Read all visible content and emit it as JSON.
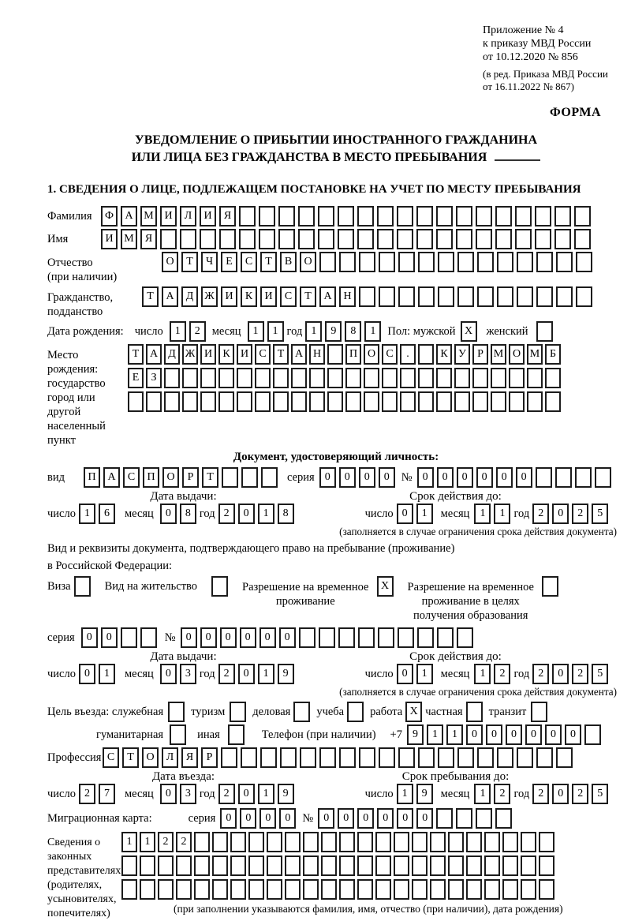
{
  "colors": {
    "ink": "#000000",
    "cell_border": "#1c1c1c"
  },
  "header": {
    "annex": [
      "Приложение № 4",
      "к приказу МВД России",
      "от 10.12.2020 № 856"
    ],
    "annex_note": [
      "(в ред. Приказа МВД России",
      "от 16.11.2022 № 867)"
    ],
    "forma": "ФОРМА"
  },
  "title": {
    "line1": "УВЕДОМЛЕНИЕ О ПРИБЫТИИ ИНОСТРАННОГО ГРАЖДАНИНА",
    "line2": "ИЛИ ЛИЦА БЕЗ ГРАЖДАНСТВА В МЕСТО ПРЕБЫВАНИЯ"
  },
  "section1_heading": "1. СВЕДЕНИЯ О ЛИЦЕ, ПОДЛЕЖАЩЕМ ПОСТАНОВКЕ НА УЧЕТ ПО МЕСТУ ПРЕБЫВАНИЯ",
  "labels": {
    "surname": "Фамилия",
    "name": "Имя",
    "patronymic1": "Отчество",
    "patronymic2": "(при наличии)",
    "citizenship1": "Гражданство,",
    "citizenship2": "подданство",
    "birthdate": "Дата рождения:",
    "day": "число",
    "month": "месяц",
    "year": "год",
    "sex_male": "Пол: мужской",
    "sex_female": "женский",
    "birthplace1": "Место рождения:",
    "birthplace2": "государство",
    "birthplace3": "город или другой",
    "birthplace4": "населенный пункт",
    "iddoc_header": "Документ, удостоверяющий личность:",
    "kind": "вид",
    "series": "серия",
    "number": "№",
    "issue_date": "Дата выдачи:",
    "valid_until": "Срок действия до:",
    "valid_note": "(заполняется в случае ограничения срока действия документа)",
    "residoc_line1": "Вид и реквизиты документа, подтверждающего право на пребывание (проживание)",
    "residoc_line2": "в Российской Федерации:",
    "visa": "Виза",
    "residence_permit": "Вид на жительство",
    "rvp_line1": "Разрешение на временное",
    "rvp_line2": "проживание",
    "rvp_edu_line1": "Разрешение на временное",
    "rvp_edu_line2": "проживание в целях",
    "rvp_edu_line3": "получения образования",
    "purpose": "Цель въезда: служебная",
    "tourism": "туризм",
    "business": "деловая",
    "study": "учеба",
    "work": "работа",
    "private": "частная",
    "transit": "транзит",
    "humanitarian": "гуманитарная",
    "other": "иная",
    "phone": "Телефон (при наличии)",
    "phone_prefix": "+7",
    "profession": "Профессия",
    "entry_date": "Дата въезда:",
    "stay_until": "Срок пребывания до:",
    "migration_card": "Миграционная карта:",
    "reps1": "Сведения о",
    "reps2": "законных",
    "reps3": "представителях",
    "reps4": "(родителях,",
    "reps5": "усыновителях,",
    "reps6": "попечителях)",
    "reps_note": "(при заполнении указываются фамилия, имя, отчество (при наличии), дата рождения)"
  },
  "cells": {
    "surname": {
      "text": "ФАМИЛИЯ",
      "count": 25
    },
    "name": {
      "text": "ИМЯ",
      "count": 25
    },
    "patronymic": {
      "text": "ОТЧЕСТВО",
      "count": 22
    },
    "citizenship": {
      "text": "ТАДЖИКИСТАН",
      "count": 23
    },
    "birth_day": {
      "text": "12",
      "count": 2
    },
    "birth_month": {
      "text": "11",
      "count": 2
    },
    "birth_year": {
      "text": "1981",
      "count": 4
    },
    "sex_male": {
      "text": "X",
      "count": 1
    },
    "sex_female": {
      "text": "",
      "count": 1
    },
    "birthplace_r1": {
      "text": "ТАДЖИКИСТАН ПОС. КУРМОМБ",
      "count": 24
    },
    "birthplace_r2": {
      "text": "ЕЗ",
      "count": 24
    },
    "birthplace_r3": {
      "text": "",
      "count": 24
    },
    "doc_kind": {
      "text": "ПАСПОРТ",
      "count": 10
    },
    "doc_series": {
      "text": "0000",
      "count": 4
    },
    "doc_number": {
      "text": "000000",
      "count": 10
    },
    "doc_issue_day": {
      "text": "16",
      "count": 2
    },
    "doc_issue_month": {
      "text": "08",
      "count": 2
    },
    "doc_issue_year": {
      "text": "2018",
      "count": 4
    },
    "doc_valid_day": {
      "text": "01",
      "count": 2
    },
    "doc_valid_month": {
      "text": "11",
      "count": 2
    },
    "doc_valid_year": {
      "text": "2025",
      "count": 4
    },
    "visa": {
      "text": "",
      "count": 1
    },
    "residence_permit": {
      "text": "",
      "count": 1
    },
    "rvp": {
      "text": "X",
      "count": 1
    },
    "rvp_edu": {
      "text": "",
      "count": 1
    },
    "res_series": {
      "text": "00",
      "count": 4
    },
    "res_number": {
      "text": "000000",
      "count": 15
    },
    "res_issue_day": {
      "text": "01",
      "count": 2
    },
    "res_issue_month": {
      "text": "03",
      "count": 2
    },
    "res_issue_year": {
      "text": "2019",
      "count": 4
    },
    "res_valid_day": {
      "text": "01",
      "count": 2
    },
    "res_valid_month": {
      "text": "12",
      "count": 2
    },
    "res_valid_year": {
      "text": "2025",
      "count": 4
    },
    "purpose_official": {
      "text": "",
      "count": 1
    },
    "purpose_tourism": {
      "text": "",
      "count": 1
    },
    "purpose_business": {
      "text": "",
      "count": 1
    },
    "purpose_study": {
      "text": "",
      "count": 1
    },
    "purpose_work": {
      "text": "X",
      "count": 1
    },
    "purpose_private": {
      "text": "",
      "count": 1
    },
    "purpose_transit": {
      "text": "",
      "count": 1
    },
    "purpose_humanitarian": {
      "text": "",
      "count": 1
    },
    "purpose_other": {
      "text": "",
      "count": 1
    },
    "phone": {
      "text": "911000000",
      "count": 10
    },
    "profession": {
      "text": "СТОЛЯР",
      "count": 24
    },
    "entry_day": {
      "text": "27",
      "count": 2
    },
    "entry_month": {
      "text": "03",
      "count": 2
    },
    "entry_year": {
      "text": "2019",
      "count": 4
    },
    "stay_day": {
      "text": "19",
      "count": 2
    },
    "stay_month": {
      "text": "12",
      "count": 2
    },
    "stay_year": {
      "text": "2025",
      "count": 4
    },
    "mig_series": {
      "text": "0000",
      "count": 4
    },
    "mig_number": {
      "text": "000000",
      "count": 10
    },
    "reps_r1": {
      "text": "1122",
      "count": 24
    },
    "reps_r2": {
      "text": "",
      "count": 24
    },
    "reps_r3": {
      "text": "",
      "count": 24
    }
  }
}
